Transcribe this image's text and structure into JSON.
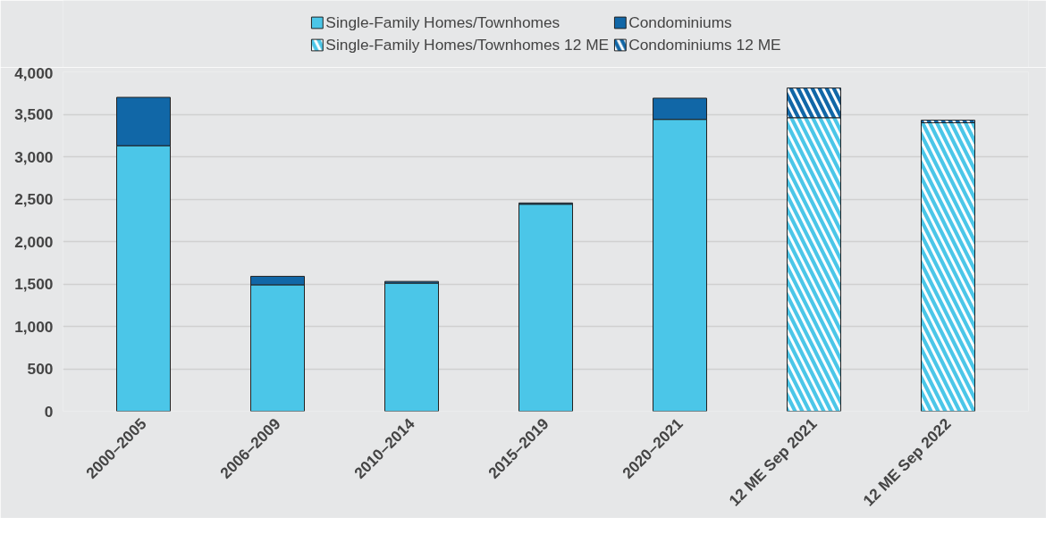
{
  "chart_data": {
    "type": "bar",
    "stacked": true,
    "categories": [
      "2000–2005",
      "2006–2009",
      "2010–2014",
      "2015–2019",
      "2020–2021",
      "12 ME Sep 2021",
      "12 ME Sep 2022"
    ],
    "series": [
      {
        "name": "Single-Family Homes/Townhomes",
        "color": "#4bc6e8",
        "values": [
          3130,
          1490,
          1510,
          2440,
          3440,
          null,
          null
        ]
      },
      {
        "name": "Condominiums",
        "color": "#1167a7",
        "values": [
          570,
          100,
          20,
          15,
          250,
          null,
          null
        ]
      },
      {
        "name": "Single-Family Homes/Townhomes 12 ME",
        "color": "#4bc6e8",
        "values": [
          null,
          null,
          null,
          null,
          null,
          3460,
          3400
        ]
      },
      {
        "name": "Condominiums 12 ME",
        "color": "#1167a7",
        "values": [
          null,
          null,
          null,
          null,
          null,
          350,
          30
        ]
      }
    ],
    "ylim": [
      0,
      4000
    ],
    "yticks": [
      {
        "value": 0,
        "label": "0"
      },
      {
        "value": 500,
        "label": "500"
      },
      {
        "value": 1000,
        "label": "1,000"
      },
      {
        "value": 1500,
        "label": "1,500"
      },
      {
        "value": 2000,
        "label": "2,000"
      },
      {
        "value": 2500,
        "label": "2,500"
      },
      {
        "value": 3000,
        "label": "3,000"
      },
      {
        "value": 3500,
        "label": "3,500"
      },
      {
        "value": 4000,
        "label": "4,000"
      }
    ],
    "grid": "y",
    "legend": "top"
  }
}
